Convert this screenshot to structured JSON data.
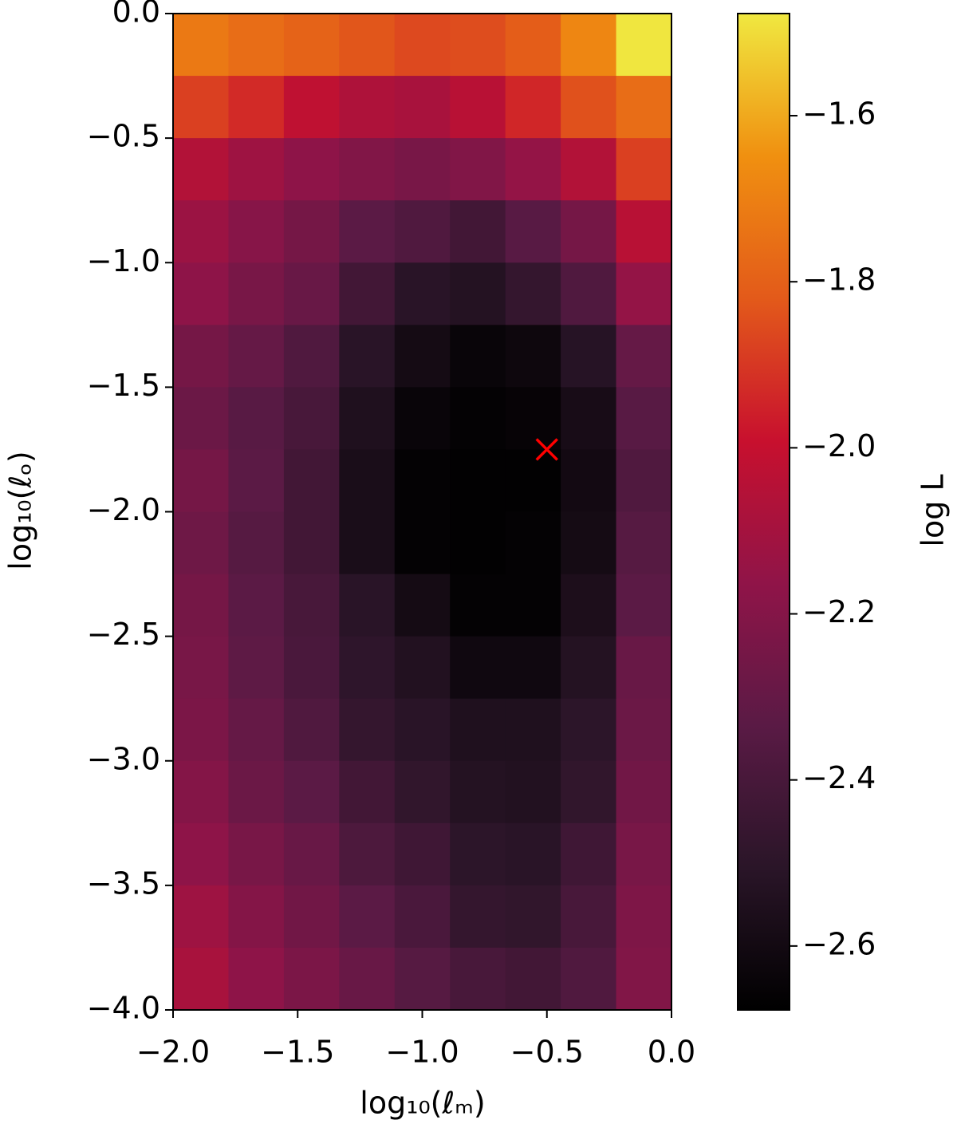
{
  "chart_data": {
    "type": "heatmap",
    "xlabel": "log₁₀(ℓₘ)",
    "ylabel": "log₁₀(ℓₒ)",
    "colorbar_label": "log L",
    "xlim": [
      -2,
      0
    ],
    "ylim": [
      -4,
      0
    ],
    "xticks": [
      {
        "value": -2,
        "label": "−2.0"
      },
      {
        "value": -1.5,
        "label": "−1.5"
      },
      {
        "value": -1,
        "label": "−1.0"
      },
      {
        "value": -0.5,
        "label": "−0.5"
      },
      {
        "value": 0,
        "label": "0.0"
      }
    ],
    "yticks": [
      {
        "value": 0,
        "label": "0.0"
      },
      {
        "value": -0.5,
        "label": "−0.5"
      },
      {
        "value": -1,
        "label": "−1.0"
      },
      {
        "value": -1.5,
        "label": "−1.5"
      },
      {
        "value": -2,
        "label": "−2.0"
      },
      {
        "value": -2.5,
        "label": "−2.5"
      },
      {
        "value": -3,
        "label": "−3.0"
      },
      {
        "value": -3.5,
        "label": "−3.5"
      },
      {
        "value": -4,
        "label": "−4.0"
      }
    ],
    "clim": [
      -2.677,
      -1.477
    ],
    "cticks": [
      {
        "value": -1.6,
        "label": "−1.6"
      },
      {
        "value": -1.8,
        "label": "−1.8"
      },
      {
        "value": -2.0,
        "label": "−2.0"
      },
      {
        "value": -2.2,
        "label": "−2.2"
      },
      {
        "value": -2.4,
        "label": "−2.4"
      },
      {
        "value": -2.6,
        "label": "−2.6"
      }
    ],
    "colorscale": [
      "#000000",
      "#2a1528",
      "#5a1a45",
      "#901448",
      "#c8102e",
      "#e35a1a",
      "#f09010",
      "#f0e840"
    ],
    "z": [
      [
        -1.72,
        -1.76,
        -1.79,
        -1.83,
        -1.86,
        -1.85,
        -1.81,
        -1.68,
        -1.48
      ],
      [
        -1.88,
        -1.93,
        -2.02,
        -2.07,
        -2.09,
        -2.04,
        -1.94,
        -1.84,
        -1.76
      ],
      [
        -2.06,
        -2.12,
        -2.17,
        -2.21,
        -2.24,
        -2.21,
        -2.15,
        -2.06,
        -1.88
      ],
      [
        -2.13,
        -2.19,
        -2.25,
        -2.33,
        -2.37,
        -2.42,
        -2.34,
        -2.25,
        -2.04
      ],
      [
        -2.17,
        -2.24,
        -2.29,
        -2.42,
        -2.51,
        -2.53,
        -2.47,
        -2.37,
        -2.15
      ],
      [
        -2.25,
        -2.3,
        -2.37,
        -2.51,
        -2.59,
        -2.64,
        -2.62,
        -2.52,
        -2.3
      ],
      [
        -2.28,
        -2.34,
        -2.4,
        -2.55,
        -2.64,
        -2.66,
        -2.65,
        -2.58,
        -2.34
      ],
      [
        -2.25,
        -2.33,
        -2.42,
        -2.57,
        -2.66,
        -2.67,
        -2.67,
        -2.6,
        -2.37
      ],
      [
        -2.27,
        -2.35,
        -2.42,
        -2.57,
        -2.66,
        -2.67,
        -2.66,
        -2.59,
        -2.35
      ],
      [
        -2.25,
        -2.33,
        -2.4,
        -2.51,
        -2.59,
        -2.66,
        -2.66,
        -2.56,
        -2.33
      ],
      [
        -2.24,
        -2.32,
        -2.39,
        -2.49,
        -2.54,
        -2.61,
        -2.61,
        -2.53,
        -2.29
      ],
      [
        -2.23,
        -2.3,
        -2.37,
        -2.47,
        -2.51,
        -2.55,
        -2.55,
        -2.5,
        -2.28
      ],
      [
        -2.2,
        -2.28,
        -2.33,
        -2.42,
        -2.48,
        -2.53,
        -2.54,
        -2.48,
        -2.26
      ],
      [
        -2.17,
        -2.24,
        -2.29,
        -2.38,
        -2.43,
        -2.5,
        -2.51,
        -2.43,
        -2.24
      ],
      [
        -2.12,
        -2.2,
        -2.26,
        -2.33,
        -2.39,
        -2.47,
        -2.48,
        -2.4,
        -2.22
      ],
      [
        -2.09,
        -2.17,
        -2.23,
        -2.29,
        -2.35,
        -2.4,
        -2.42,
        -2.37,
        -2.21
      ]
    ],
    "marker": {
      "x": -0.5,
      "y": -1.75,
      "color": "#ff0000"
    }
  }
}
